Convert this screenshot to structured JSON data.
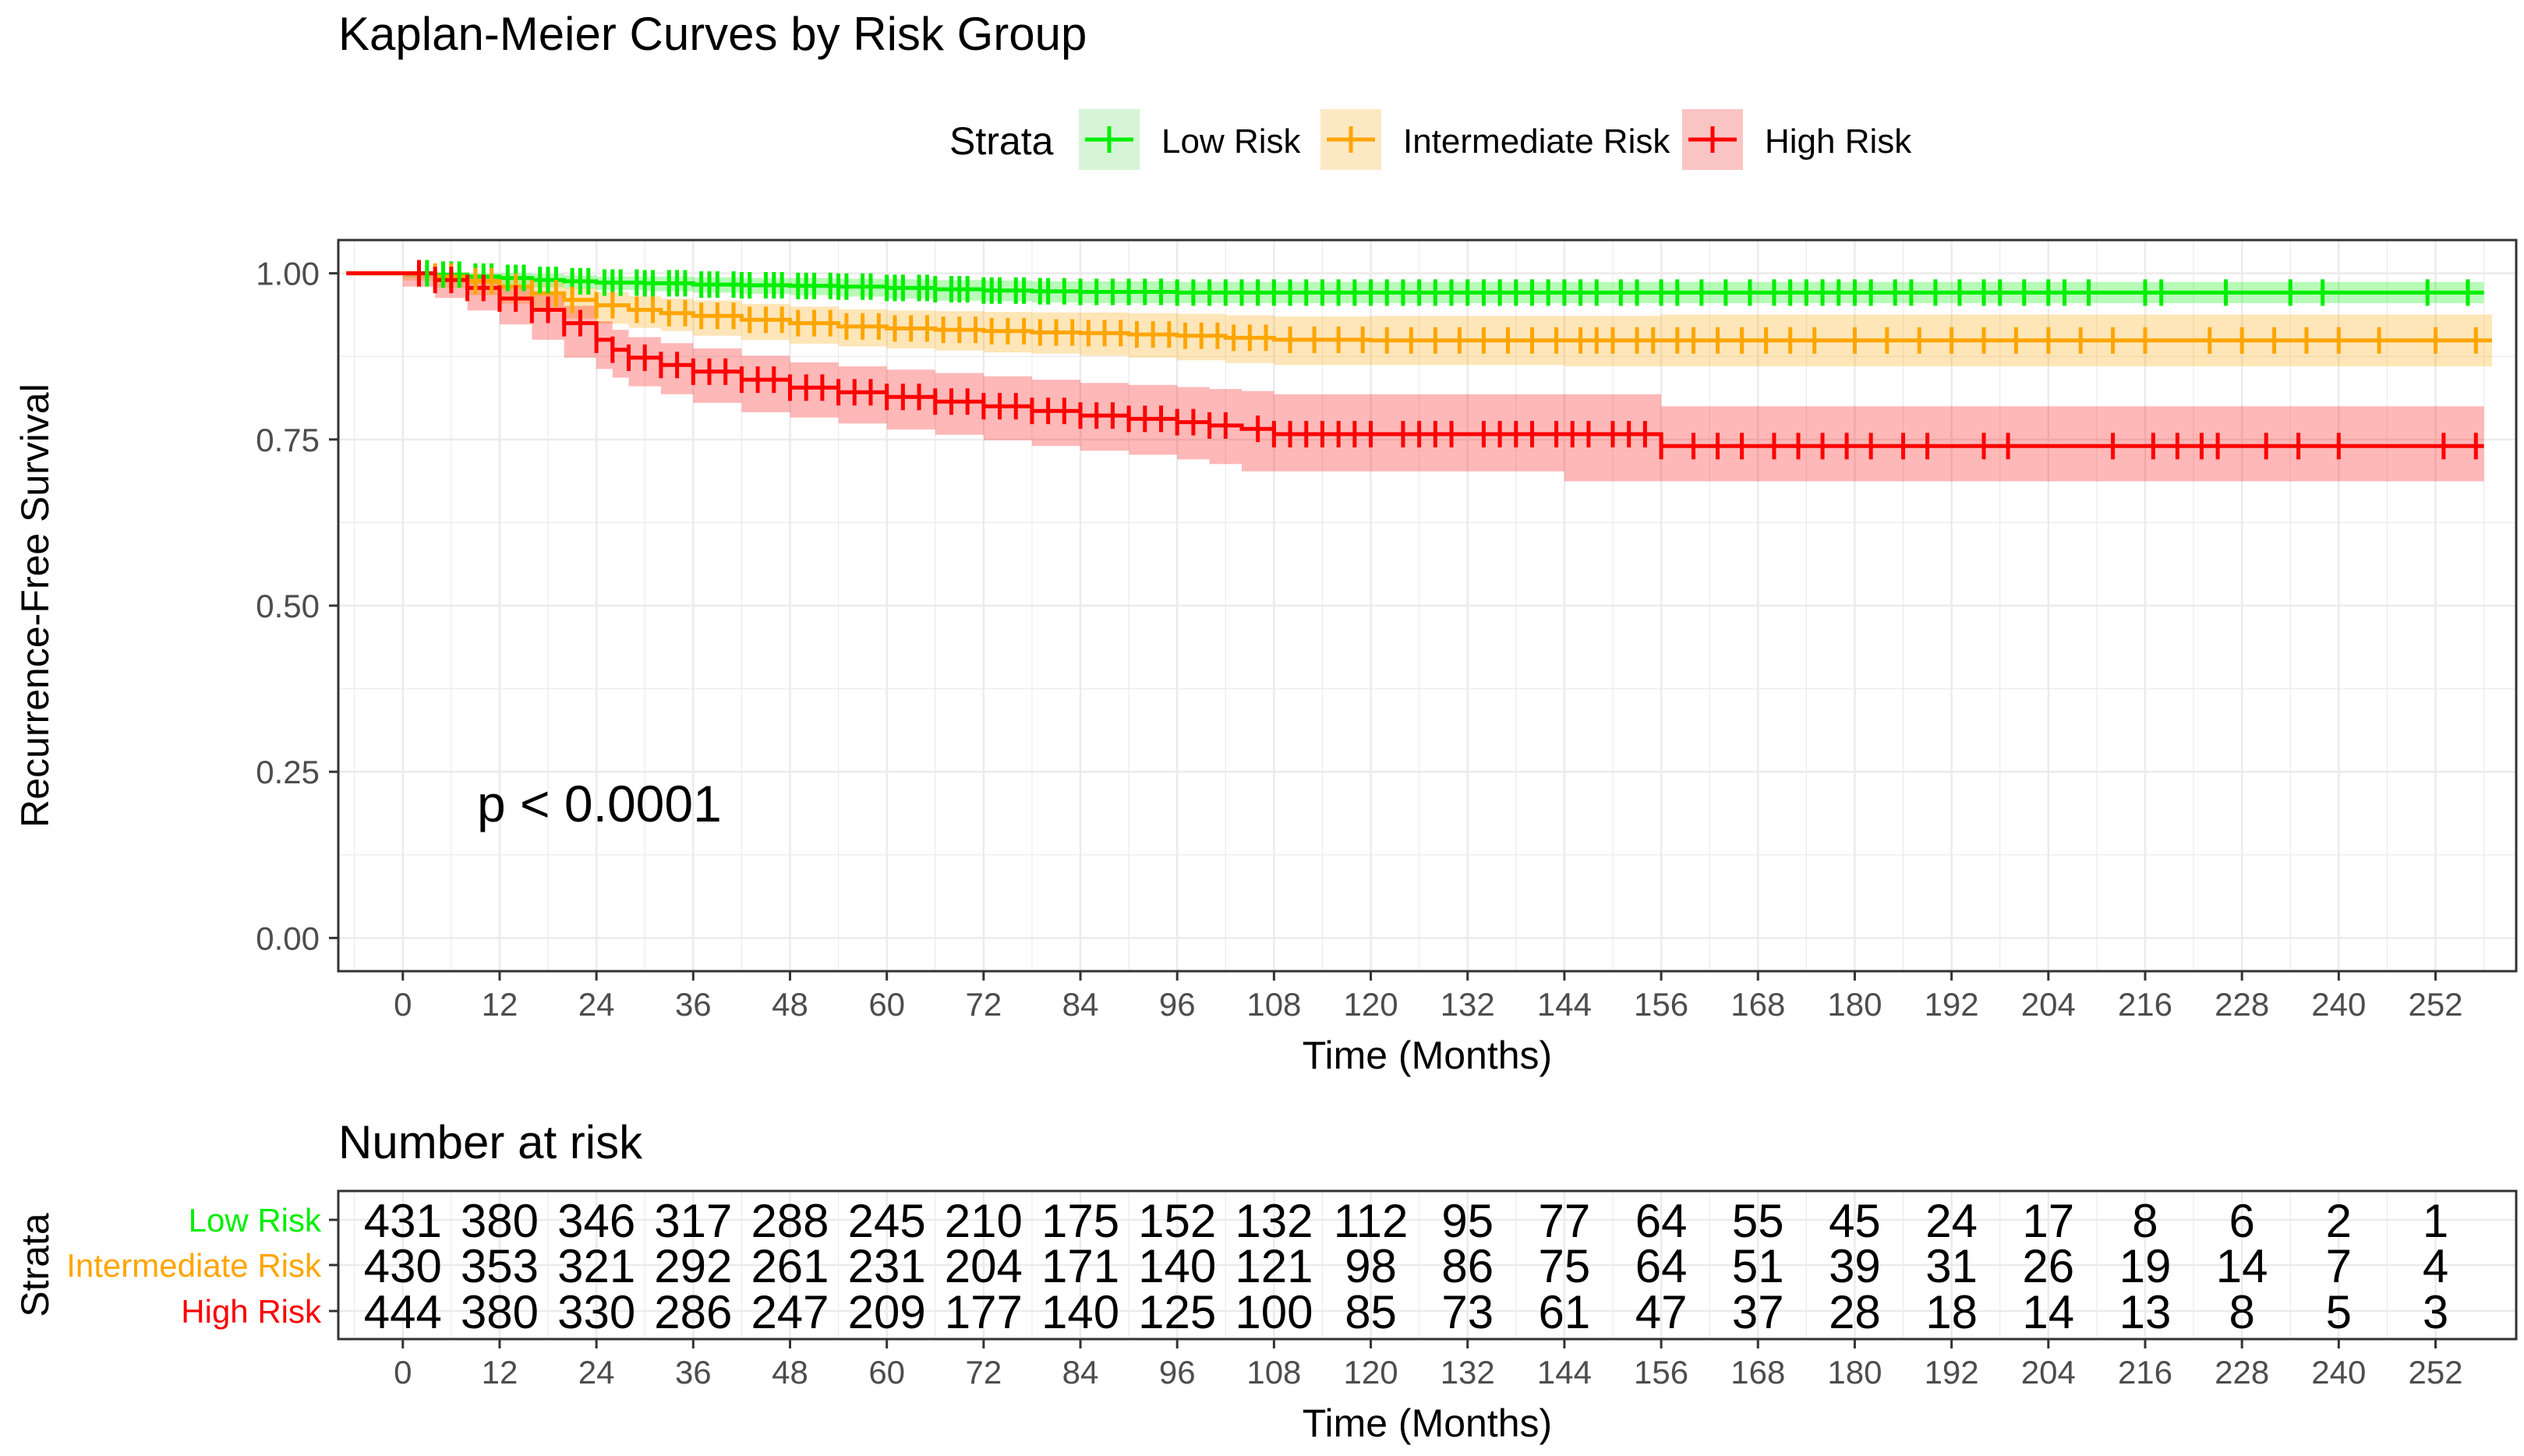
{
  "title": "Kaplan-Meier Curves by Risk Group",
  "legend": {
    "title": "Strata",
    "items": [
      "Low Risk",
      "Intermediate Risk",
      "High Risk"
    ]
  },
  "annotation": "p < 0.0001",
  "colors": {
    "low": "#00ee00",
    "intermediate": "#ffa500",
    "high": "#ff0000",
    "grid": "#ebebeb",
    "text": "#000000",
    "tick_text": "#4d4d4d"
  },
  "chart_data": [
    {
      "type": "line",
      "subtype": "kaplan-meier",
      "title": "Kaplan-Meier Curves by Risk Group",
      "xlabel": "Time (Months)",
      "ylabel": "Recurrence-Free Survival",
      "xlim": [
        -8,
        262
      ],
      "ylim": [
        -0.05,
        1.05
      ],
      "xticks": [
        0,
        12,
        24,
        36,
        48,
        60,
        72,
        84,
        96,
        108,
        120,
        132,
        144,
        156,
        168,
        180,
        192,
        204,
        216,
        228,
        240,
        252
      ],
      "yticks": [
        "0.00",
        "0.25",
        "0.50",
        "0.75",
        "1.00"
      ],
      "grid": true,
      "legend_position": "top",
      "annotation": "p < 0.0001",
      "series": [
        {
          "name": "Low Risk",
          "color": "#00ee00",
          "x": [
            0,
            4,
            8,
            12,
            16,
            20,
            24,
            30,
            36,
            42,
            48,
            54,
            60,
            66,
            72,
            78,
            84,
            96,
            108,
            120,
            132,
            144,
            156,
            168,
            180,
            192,
            204,
            216,
            228,
            240,
            252,
            258
          ],
          "y": [
            1.0,
            0.998,
            0.995,
            0.993,
            0.99,
            0.988,
            0.986,
            0.985,
            0.983,
            0.982,
            0.981,
            0.98,
            0.978,
            0.976,
            0.974,
            0.973,
            0.972,
            0.971,
            0.971,
            0.971,
            0.971,
            0.971,
            0.971,
            0.971,
            0.971,
            0.971,
            0.971,
            0.971,
            0.971,
            0.971,
            0.971,
            0.971
          ],
          "ci_lower": [
            1.0,
            0.994,
            0.989,
            0.986,
            0.982,
            0.979,
            0.977,
            0.975,
            0.973,
            0.971,
            0.969,
            0.967,
            0.965,
            0.962,
            0.959,
            0.958,
            0.956,
            0.955,
            0.955,
            0.955,
            0.955,
            0.955,
            0.955,
            0.955,
            0.955,
            0.955,
            0.955,
            0.955,
            0.955,
            0.955,
            0.955,
            0.955
          ],
          "ci_upper": [
            1.0,
            1.0,
            1.0,
            1.0,
            0.999,
            0.997,
            0.995,
            0.995,
            0.994,
            0.993,
            0.993,
            0.992,
            0.991,
            0.99,
            0.989,
            0.988,
            0.988,
            0.987,
            0.987,
            0.987,
            0.987,
            0.987,
            0.987,
            0.987,
            0.987,
            0.987,
            0.987,
            0.987,
            0.987,
            0.987,
            0.987,
            0.987
          ],
          "censor_times": [
            2,
            3,
            5,
            6,
            7,
            9,
            10,
            11,
            13,
            14,
            15,
            17,
            18,
            19,
            21,
            22,
            23,
            25,
            26,
            27,
            29,
            30,
            31,
            33,
            34,
            35,
            37,
            38,
            39,
            41,
            42,
            43,
            45,
            46,
            47,
            49,
            50,
            51,
            53,
            54,
            55,
            57,
            58,
            60,
            61,
            62,
            64,
            65,
            66,
            68,
            69,
            70,
            72,
            73,
            74,
            76,
            77,
            79,
            80,
            82,
            84,
            86,
            88,
            90,
            92,
            94,
            96,
            98,
            100,
            102,
            104,
            106,
            108,
            110,
            112,
            114,
            116,
            118,
            120,
            122,
            124,
            126,
            128,
            130,
            132,
            134,
            136,
            138,
            140,
            142,
            144,
            146,
            148,
            151,
            153,
            156,
            158,
            161,
            164,
            167,
            170,
            172,
            174,
            176,
            178,
            180,
            182,
            185,
            187,
            190,
            193,
            196,
            198,
            201,
            204,
            206,
            209,
            216,
            218,
            226,
            234,
            238,
            251,
            256
          ]
        },
        {
          "name": "Intermediate Risk",
          "color": "#ffa500",
          "x": [
            0,
            4,
            8,
            12,
            16,
            20,
            24,
            28,
            32,
            36,
            42,
            48,
            54,
            60,
            66,
            72,
            78,
            84,
            90,
            96,
            102,
            108,
            120,
            132,
            144,
            156,
            168,
            180,
            192,
            204,
            216,
            228,
            240,
            252,
            259
          ],
          "y": [
            1.0,
            0.995,
            0.988,
            0.98,
            0.97,
            0.96,
            0.952,
            0.945,
            0.94,
            0.936,
            0.93,
            0.925,
            0.92,
            0.917,
            0.915,
            0.913,
            0.911,
            0.91,
            0.908,
            0.906,
            0.903,
            0.9,
            0.899,
            0.899,
            0.899,
            0.899,
            0.899,
            0.899,
            0.899,
            0.899,
            0.899,
            0.899,
            0.899,
            0.899,
            0.899
          ],
          "ci_lower": [
            1.0,
            0.989,
            0.978,
            0.967,
            0.954,
            0.942,
            0.932,
            0.924,
            0.918,
            0.913,
            0.906,
            0.9,
            0.894,
            0.89,
            0.887,
            0.884,
            0.881,
            0.879,
            0.876,
            0.873,
            0.869,
            0.865,
            0.862,
            0.862,
            0.862,
            0.86,
            0.86,
            0.86,
            0.86,
            0.86,
            0.86,
            0.86,
            0.86,
            0.86,
            0.86
          ],
          "ci_upper": [
            1.0,
            1.0,
            0.998,
            0.993,
            0.986,
            0.978,
            0.972,
            0.966,
            0.962,
            0.959,
            0.954,
            0.95,
            0.946,
            0.944,
            0.943,
            0.942,
            0.941,
            0.941,
            0.94,
            0.939,
            0.937,
            0.935,
            0.936,
            0.936,
            0.936,
            0.938,
            0.938,
            0.938,
            0.938,
            0.938,
            0.938,
            0.938,
            0.938,
            0.938,
            0.938
          ],
          "censor_times": [
            2,
            4,
            6,
            9,
            11,
            14,
            16,
            19,
            21,
            24,
            26,
            29,
            31,
            33,
            35,
            37,
            39,
            41,
            43,
            45,
            47,
            49,
            51,
            53,
            55,
            57,
            59,
            61,
            63,
            65,
            67,
            69,
            71,
            73,
            75,
            77,
            79,
            81,
            83,
            85,
            87,
            89,
            91,
            93,
            95,
            97,
            99,
            101,
            103,
            105,
            107,
            110,
            113,
            116,
            119,
            122,
            125,
            128,
            131,
            134,
            137,
            140,
            143,
            146,
            148,
            150,
            153,
            155,
            158,
            160,
            163,
            166,
            169,
            172,
            175,
            180,
            184,
            188,
            192,
            196,
            200,
            204,
            208,
            212,
            216,
            224,
            228,
            232,
            236,
            240,
            245,
            252,
            257
          ]
        },
        {
          "name": "High Risk",
          "color": "#ff0000",
          "x": [
            0,
            4,
            8,
            12,
            16,
            20,
            24,
            26,
            28,
            32,
            36,
            42,
            48,
            54,
            60,
            66,
            72,
            78,
            84,
            90,
            96,
            100,
            104,
            108,
            120,
            132,
            144,
            156,
            168,
            180,
            192,
            204,
            216,
            228,
            240,
            252,
            258
          ],
          "y": [
            1.0,
            0.99,
            0.978,
            0.962,
            0.945,
            0.925,
            0.9,
            0.885,
            0.873,
            0.862,
            0.852,
            0.84,
            0.828,
            0.821,
            0.814,
            0.807,
            0.8,
            0.793,
            0.786,
            0.781,
            0.776,
            0.771,
            0.766,
            0.758,
            0.758,
            0.758,
            0.758,
            0.74,
            0.74,
            0.74,
            0.74,
            0.74,
            0.74,
            0.74,
            0.74,
            0.74,
            0.74
          ],
          "ci_lower": [
            1.0,
            0.98,
            0.963,
            0.944,
            0.923,
            0.9,
            0.873,
            0.856,
            0.843,
            0.83,
            0.818,
            0.805,
            0.791,
            0.783,
            0.774,
            0.765,
            0.757,
            0.749,
            0.74,
            0.733,
            0.727,
            0.72,
            0.713,
            0.702,
            0.702,
            0.702,
            0.702,
            0.687,
            0.687,
            0.687,
            0.687,
            0.687,
            0.687,
            0.687,
            0.687,
            0.687,
            0.687
          ],
          "ci_upper": [
            1.0,
            1.0,
            0.993,
            0.98,
            0.967,
            0.951,
            0.928,
            0.915,
            0.904,
            0.895,
            0.887,
            0.876,
            0.866,
            0.86,
            0.855,
            0.85,
            0.845,
            0.84,
            0.835,
            0.832,
            0.829,
            0.826,
            0.823,
            0.818,
            0.818,
            0.818,
            0.818,
            0.8,
            0.8,
            0.8,
            0.8,
            0.8,
            0.8,
            0.8,
            0.8,
            0.8,
            0.8
          ],
          "censor_times": [
            2,
            4,
            6,
            8,
            10,
            12,
            14,
            16,
            18,
            20,
            22,
            24,
            26,
            28,
            30,
            32,
            34,
            36,
            38,
            40,
            42,
            44,
            46,
            48,
            50,
            52,
            54,
            56,
            58,
            60,
            62,
            64,
            66,
            68,
            70,
            72,
            74,
            76,
            78,
            80,
            82,
            84,
            86,
            88,
            90,
            92,
            94,
            96,
            98,
            100,
            102,
            106,
            108,
            110,
            112,
            114,
            116,
            118,
            120,
            124,
            126,
            128,
            130,
            134,
            136,
            138,
            140,
            143,
            145,
            147,
            150,
            152,
            154,
            156,
            160,
            163,
            166,
            170,
            173,
            176,
            179,
            182,
            186,
            189,
            196,
            199,
            212,
            217,
            220,
            223,
            225,
            231,
            235,
            240,
            253,
            257
          ]
        }
      ]
    },
    {
      "type": "table",
      "title": "Number at risk",
      "ylabel": "Strata",
      "xlabel": "Time (Months)",
      "xticks": [
        0,
        12,
        24,
        36,
        48,
        60,
        72,
        84,
        96,
        108,
        120,
        132,
        144,
        156,
        168,
        180,
        192,
        204,
        216,
        228,
        240,
        252
      ],
      "rows": [
        {
          "name": "Low Risk",
          "color": "#00ee00",
          "values": [
            431,
            380,
            346,
            317,
            288,
            245,
            210,
            175,
            152,
            132,
            112,
            95,
            77,
            64,
            55,
            45,
            24,
            17,
            8,
            6,
            2,
            1
          ]
        },
        {
          "name": "Intermediate Risk",
          "color": "#ffa500",
          "values": [
            430,
            353,
            321,
            292,
            261,
            231,
            204,
            171,
            140,
            121,
            98,
            86,
            75,
            64,
            51,
            39,
            31,
            26,
            19,
            14,
            7,
            4
          ]
        },
        {
          "name": "High Risk",
          "color": "#ff0000",
          "values": [
            444,
            380,
            330,
            286,
            247,
            209,
            177,
            140,
            125,
            100,
            85,
            73,
            61,
            47,
            37,
            28,
            18,
            14,
            13,
            8,
            5,
            3
          ]
        }
      ]
    }
  ]
}
